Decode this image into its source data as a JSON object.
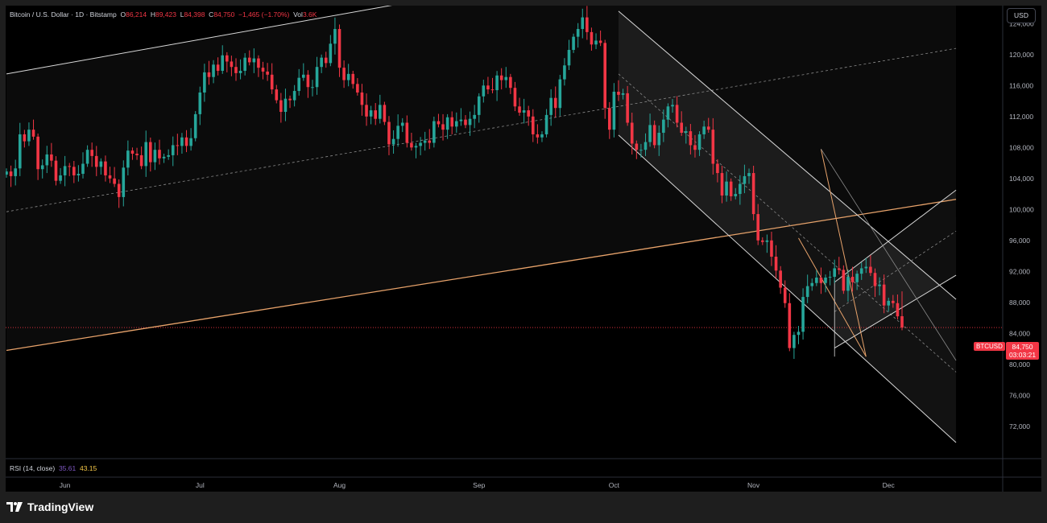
{
  "header": {
    "symbol": "Bitcoin / U.S. Dollar · 1D · Bitstamp",
    "o_label": "O",
    "o_value": "86,214",
    "h_label": "H",
    "h_value": "89,423",
    "l_label": "L",
    "l_value": "84,398",
    "c_label": "C",
    "c_value": "84,750",
    "change": "−1,465 (−1.70%)",
    "vol_label": "Vol",
    "vol_value": "3.6K"
  },
  "currency_button": "USD",
  "price_tag": {
    "symbol": "BTCUSD",
    "price": "84,750",
    "countdown": "03:03:21"
  },
  "rsi_legend": {
    "label": "RSI (14, close)",
    "value1": "35.61",
    "value2": "43.15"
  },
  "branding": {
    "name": "TradingView"
  },
  "colors": {
    "up": "#26a69a",
    "down": "#f23645",
    "orange_line": "#e8a36b",
    "channel_line": "#d8d8d8",
    "background": "#000000",
    "frame": "#1e1e1e",
    "rsi_line1": "#7e57c2",
    "rsi_line2": "#f7c948"
  },
  "chart_data": {
    "type": "candlestick",
    "title": "Bitcoin / U.S. Dollar · 1D · Bitstamp",
    "xlabel": "",
    "ylabel": "",
    "ylim": [
      70000,
      127000
    ],
    "y_ticks": [
      "124,000",
      "120,000",
      "116,000",
      "112,000",
      "108,000",
      "104,000",
      "100,000",
      "96,000",
      "92,000",
      "88,000",
      "84,000",
      "80,000",
      "76,000",
      "72,000"
    ],
    "y_tick_values": [
      124000,
      120000,
      116000,
      112000,
      108000,
      104000,
      100000,
      96000,
      92000,
      88000,
      84000,
      80000,
      76000,
      72000
    ],
    "x_ticks": [
      {
        "label": "Jun",
        "index": 0
      },
      {
        "label": "Jul",
        "index": 30
      },
      {
        "label": "Aug",
        "index": 61
      },
      {
        "label": "Sep",
        "index": 92
      },
      {
        "label": "Oct",
        "index": 122
      },
      {
        "label": "Nov",
        "index": 153
      },
      {
        "label": "Dec",
        "index": 183
      }
    ],
    "first_index": -13,
    "last_index": 199,
    "closes": [
      104900,
      104300,
      105300,
      109700,
      108800,
      110300,
      109400,
      105200,
      105700,
      107100,
      106300,
      103700,
      104400,
      105600,
      105500,
      104400,
      104600,
      105900,
      107700,
      106900,
      105500,
      106200,
      104400,
      104000,
      103300,
      101600,
      105400,
      107600,
      107200,
      107000,
      105600,
      108700,
      106100,
      107700,
      106600,
      106800,
      107000,
      108300,
      108200,
      109300,
      108200,
      109200,
      112300,
      115100,
      117700,
      117100,
      118700,
      117900,
      119900,
      119100,
      118400,
      117600,
      117900,
      119600,
      119000,
      119500,
      118300,
      117800,
      117400,
      115500,
      114100,
      112600,
      114300,
      114100,
      115300,
      117000,
      117400,
      115800,
      115800,
      118400,
      119600,
      118900,
      121400,
      123300,
      118300,
      116700,
      117500,
      116200,
      115100,
      113500,
      112000,
      112800,
      111700,
      113500,
      111300,
      108400,
      109100,
      110800,
      111200,
      108600,
      108000,
      108200,
      108600,
      108900,
      108600,
      111400,
      111000,
      110300,
      111900,
      110700,
      111400,
      111600,
      110900,
      111700,
      112200,
      114600,
      116000,
      115500,
      115400,
      117300,
      116700,
      117100,
      115700,
      113300,
      112500,
      112800,
      112000,
      109700,
      109300,
      109700,
      112200,
      114400,
      113100,
      116800,
      118600,
      120600,
      122300,
      123300,
      124800,
      122900,
      121300,
      121800,
      121500,
      113100,
      110300,
      115200,
      114800,
      115000,
      111200,
      108500,
      107700,
      107700,
      108700,
      110900,
      108300,
      109900,
      111600,
      113300,
      113500,
      111200,
      109900,
      110100,
      108300,
      107700,
      109700,
      110700,
      110300,
      105900,
      104700,
      101800,
      103600,
      101700,
      102000,
      103300,
      104300,
      104700,
      99400,
      96000,
      95800,
      96000,
      93900,
      92100,
      89900,
      87900,
      82100,
      83800,
      84200,
      88700,
      90100,
      90500,
      91200,
      90500,
      91200,
      91300,
      92400,
      92200,
      89500,
      91300,
      90600,
      91700,
      92400,
      92600,
      91800,
      90100,
      90300,
      87600,
      88200,
      87900,
      86200,
      84750
    ],
    "last": {
      "open": 86214,
      "high": 89423,
      "low": 84398,
      "close": 84750,
      "change": -1465,
      "change_pct": -1.7,
      "volume": "3.6K"
    },
    "channels": [
      {
        "name": "upper-rising-channel",
        "from": [
          -13,
          117500
        ],
        "to": [
          102,
          129400
        ]
      },
      {
        "name": "rising-channel-mid",
        "from": [
          -13,
          99700
        ],
        "to": [
          198,
          120800
        ],
        "style": "dashed"
      },
      {
        "name": "rising-channel-low",
        "from": [
          -13,
          81800
        ],
        "to": [
          198,
          101300
        ],
        "style": "orange"
      },
      {
        "name": "falling-channel-top",
        "from": [
          123,
          125600
        ],
        "to": [
          198,
          88400
        ]
      },
      {
        "name": "falling-channel-mid",
        "from": [
          123,
          117500
        ],
        "to": [
          198,
          79000
        ],
        "style": "dashed"
      },
      {
        "name": "falling-channel-bottom",
        "from": [
          123,
          109600
        ],
        "to": [
          198,
          69900
        ]
      },
      {
        "name": "small-channel-top",
        "from": [
          171,
          90600
        ],
        "to": [
          198,
          102500
        ]
      },
      {
        "name": "small-channel-mid",
        "from": [
          171,
          86800
        ],
        "to": [
          198,
          97200
        ],
        "style": "dashed"
      },
      {
        "name": "small-channel-bottom",
        "from": [
          171,
          82100
        ],
        "to": [
          198,
          91500
        ]
      }
    ]
  }
}
